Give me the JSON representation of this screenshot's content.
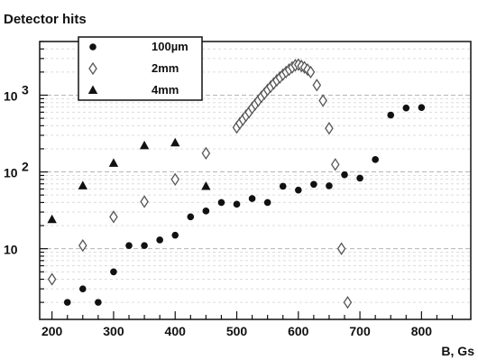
{
  "chart_data": {
    "type": "scatter",
    "title": "Detector hits",
    "xlabel": "B, Gs",
    "ylabel": "",
    "xlim": [
      180,
      880
    ],
    "ylim": [
      1.2,
      5000
    ],
    "y_scale": "log",
    "grid": "horizontal",
    "legend_position": "top-left",
    "x_ticks": [
      200,
      300,
      400,
      500,
      600,
      700,
      800
    ],
    "y_ticks": [
      {
        "value": 10,
        "label": "10"
      },
      {
        "value": 100,
        "label": "10",
        "exponent": "2"
      },
      {
        "value": 1000,
        "label": "10",
        "exponent": "3"
      }
    ],
    "series": [
      {
        "name": "100µm",
        "marker": "circle",
        "x": [
          225,
          250,
          275,
          300,
          325,
          350,
          375,
          400,
          425,
          450,
          475,
          500,
          525,
          550,
          575,
          600,
          625,
          650,
          675,
          700,
          725,
          750,
          775,
          800
        ],
        "y": [
          2,
          3,
          2,
          5,
          11,
          11,
          13,
          15,
          26,
          31,
          40,
          38,
          45,
          40,
          65,
          58,
          69,
          66,
          92,
          83,
          145,
          550,
          680,
          690
        ]
      },
      {
        "name": "2mm",
        "marker": "diamond",
        "x": [
          200,
          250,
          300,
          350,
          400,
          450,
          500,
          505,
          510,
          515,
          520,
          525,
          530,
          535,
          540,
          545,
          550,
          555,
          560,
          565,
          570,
          575,
          580,
          585,
          590,
          595,
          600,
          605,
          610,
          615,
          620,
          630,
          640,
          650,
          660,
          670,
          680
        ],
        "y": [
          4,
          11,
          26,
          41,
          80,
          175,
          380,
          430,
          480,
          540,
          600,
          680,
          760,
          850,
          950,
          1050,
          1170,
          1290,
          1420,
          1560,
          1700,
          1850,
          2000,
          2150,
          2300,
          2450,
          2500,
          2400,
          2300,
          2150,
          2000,
          1350,
          850,
          370,
          125,
          10,
          2
        ]
      },
      {
        "name": "4mm",
        "marker": "triangle",
        "x": [
          200,
          250,
          300,
          350,
          400,
          450
        ],
        "y": [
          24,
          66,
          130,
          220,
          240,
          65
        ]
      }
    ]
  }
}
